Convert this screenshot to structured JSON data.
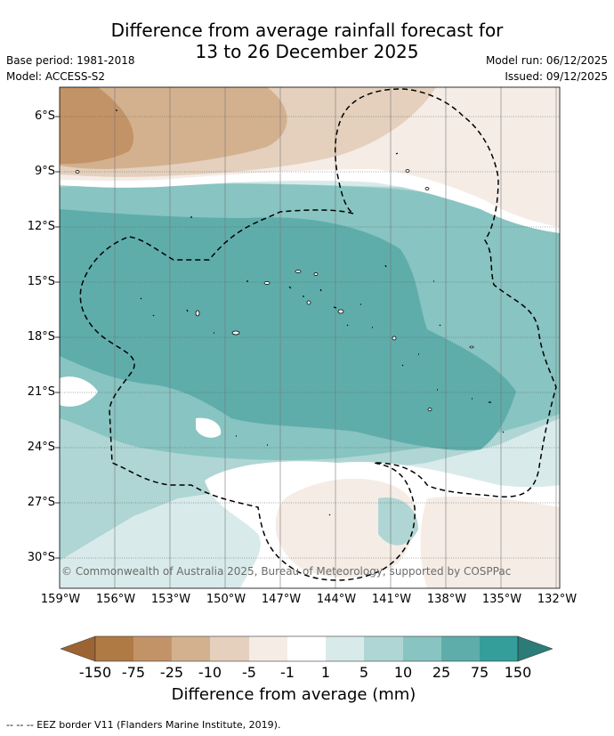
{
  "title": {
    "line1": "Difference from average rainfall forecast for",
    "line2": "13 to 26 December 2025"
  },
  "meta": {
    "base_period": "Base period: 1981-2018",
    "model": "Model: ACCESS-S2",
    "model_run": "Model run: 06/12/2025",
    "issued": "Issued: 09/12/2025"
  },
  "latitudes": [
    "6°S",
    "9°S",
    "12°S",
    "15°S",
    "18°S",
    "21°S",
    "24°S",
    "27°S",
    "30°S"
  ],
  "longitudes": [
    "159°W",
    "156°W",
    "153°W",
    "150°W",
    "147°W",
    "144°W",
    "141°W",
    "138°W",
    "135°W",
    "132°W"
  ],
  "copyright": "© Commonwealth of Australia 2025, Bureau of Meteorology, supported by COSPPac",
  "colorbar": {
    "ticks": [
      "-150",
      "-75",
      "-25",
      "-10",
      "-5",
      "-1",
      "1",
      "5",
      "10",
      "25",
      "75",
      "150"
    ],
    "label": "Difference from average (mm)",
    "colors": {
      "below_min": "#9c6433",
      "c_m150": "#b07a44",
      "c_m75": "#c39368",
      "c_m25": "#d3b18f",
      "c_m10": "#e4d0bd",
      "c_m5": "#f5ece6",
      "c_m1": "#ffffff",
      "c_1": "#d8ebea",
      "c_5": "#afd6d4",
      "c_10": "#88c4c1",
      "c_25": "#5eadab",
      "c_75": "#349e9b",
      "above_max": "#2b7b78"
    }
  },
  "footnote": "--  --  -- EEZ border V11 (Flanders Marine Institute, 2019)."
}
